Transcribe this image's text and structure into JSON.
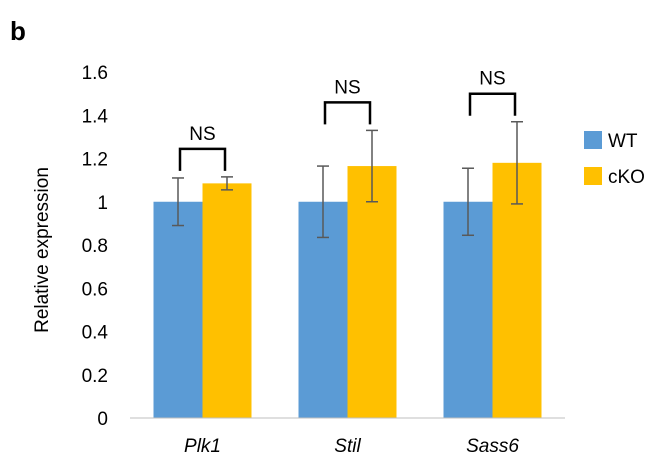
{
  "panel_label": "b",
  "chart_data": {
    "type": "bar",
    "categories": [
      "Plk1",
      "Stil",
      "Sass6"
    ],
    "series": [
      {
        "name": "WT",
        "color": "#5b9bd5",
        "values": [
          1.0,
          1.0,
          1.0
        ],
        "error": [
          0.11,
          0.165,
          0.155
        ]
      },
      {
        "name": "cKO",
        "color": "#ffc000",
        "values": [
          1.085,
          1.165,
          1.18
        ],
        "error": [
          0.03,
          0.165,
          0.19
        ]
      }
    ],
    "ylabel": "Relative expression",
    "xlabel": "",
    "ylim": [
      0,
      1.6
    ],
    "yticks": [
      0,
      0.2,
      0.4,
      0.6,
      0.8,
      1,
      1.2,
      1.4,
      1.6
    ],
    "ytick_labels": [
      "0",
      "0.2",
      "0.4",
      "0.6",
      "0.8",
      "1",
      "1.2",
      "1.4",
      "1.6"
    ],
    "grid": false,
    "legend_position": "right",
    "significance": [
      {
        "category": "Plk1",
        "label": "NS"
      },
      {
        "category": "Stil",
        "label": "NS"
      },
      {
        "category": "Sass6",
        "label": "NS"
      }
    ]
  }
}
